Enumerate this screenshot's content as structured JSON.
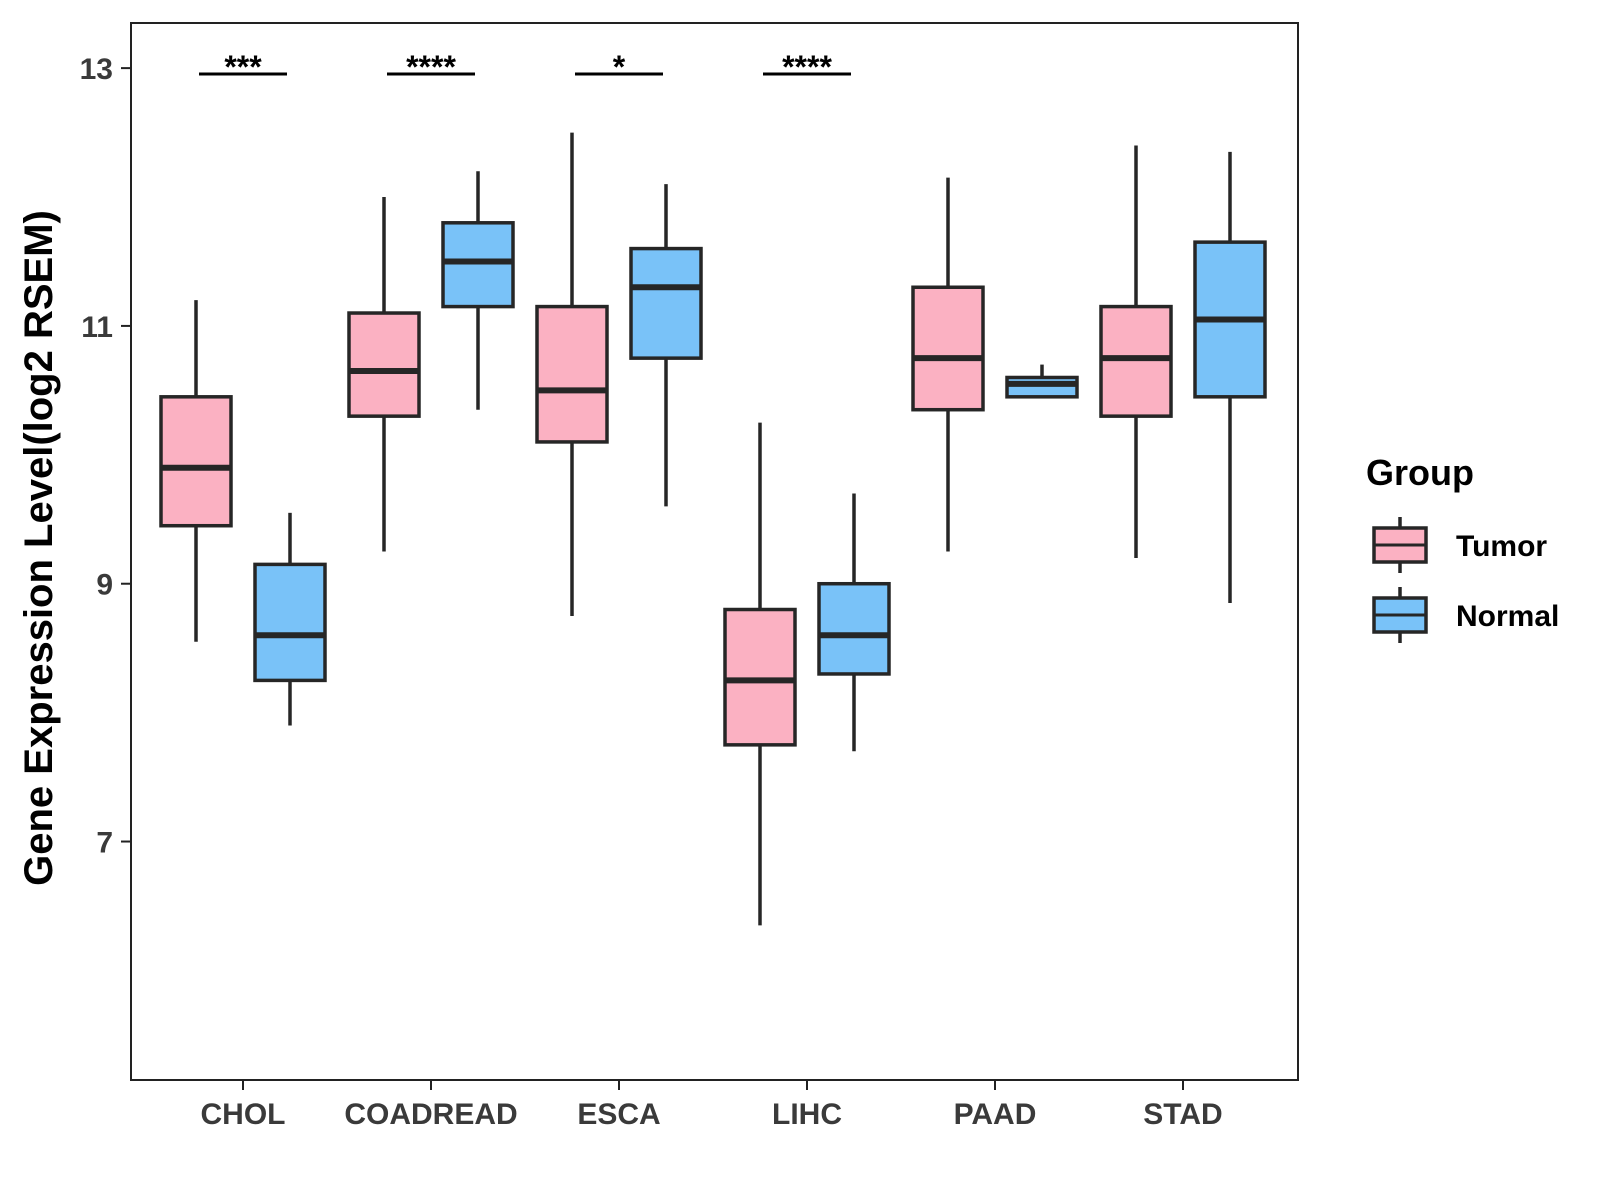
{
  "chart_data": {
    "type": "boxplot",
    "title": "",
    "xlabel": "",
    "ylabel": "Gene Expression Level(log2 RSEM)",
    "yticks": [
      7,
      9,
      11,
      13
    ],
    "ylim": [
      5.15,
      13.35
    ],
    "grid": false,
    "legend": {
      "title": "Group",
      "placement": "right",
      "entries": [
        {
          "name": "Tumor",
          "color": "#FBB1C2"
        },
        {
          "name": "Normal",
          "color": "#79C2F8"
        }
      ]
    },
    "categories": [
      {
        "name": "CHOL",
        "significance": "***",
        "boxes": [
          {
            "group": "Tumor",
            "min": 8.55,
            "q1": 9.45,
            "median": 9.9,
            "q3": 10.45,
            "max": 11.2
          },
          {
            "group": "Normal",
            "min": 7.9,
            "q1": 8.25,
            "median": 8.6,
            "q3": 9.15,
            "max": 9.55
          }
        ]
      },
      {
        "name": "COADREAD",
        "significance": "****",
        "boxes": [
          {
            "group": "Tumor",
            "min": 9.25,
            "q1": 10.3,
            "median": 10.65,
            "q3": 11.1,
            "max": 12.0
          },
          {
            "group": "Normal",
            "min": 10.35,
            "q1": 11.15,
            "median": 11.5,
            "q3": 11.8,
            "max": 12.2
          }
        ]
      },
      {
        "name": "ESCA",
        "significance": "*",
        "boxes": [
          {
            "group": "Tumor",
            "min": 8.75,
            "q1": 10.1,
            "median": 10.5,
            "q3": 11.15,
            "max": 12.5
          },
          {
            "group": "Normal",
            "min": 9.6,
            "q1": 10.75,
            "median": 11.3,
            "q3": 11.6,
            "max": 12.1
          }
        ]
      },
      {
        "name": "LIHC",
        "significance": "****",
        "boxes": [
          {
            "group": "Tumor",
            "min": 6.35,
            "q1": 7.75,
            "median": 8.25,
            "q3": 8.8,
            "max": 10.25
          },
          {
            "group": "Normal",
            "min": 7.7,
            "q1": 8.3,
            "median": 8.6,
            "q3": 9.0,
            "max": 9.7
          }
        ]
      },
      {
        "name": "PAAD",
        "significance": "",
        "boxes": [
          {
            "group": "Tumor",
            "min": 9.25,
            "q1": 10.35,
            "median": 10.75,
            "q3": 11.3,
            "max": 12.15
          },
          {
            "group": "Normal",
            "min": 10.45,
            "q1": 10.45,
            "median": 10.55,
            "q3": 10.6,
            "max": 10.7
          }
        ]
      },
      {
        "name": "STAD",
        "significance": "",
        "boxes": [
          {
            "group": "Tumor",
            "min": 9.2,
            "q1": 10.3,
            "median": 10.75,
            "q3": 11.15,
            "max": 12.4
          },
          {
            "group": "Normal",
            "min": 8.85,
            "q1": 10.45,
            "median": 11.05,
            "q3": 11.65,
            "max": 12.35
          }
        ]
      }
    ]
  }
}
